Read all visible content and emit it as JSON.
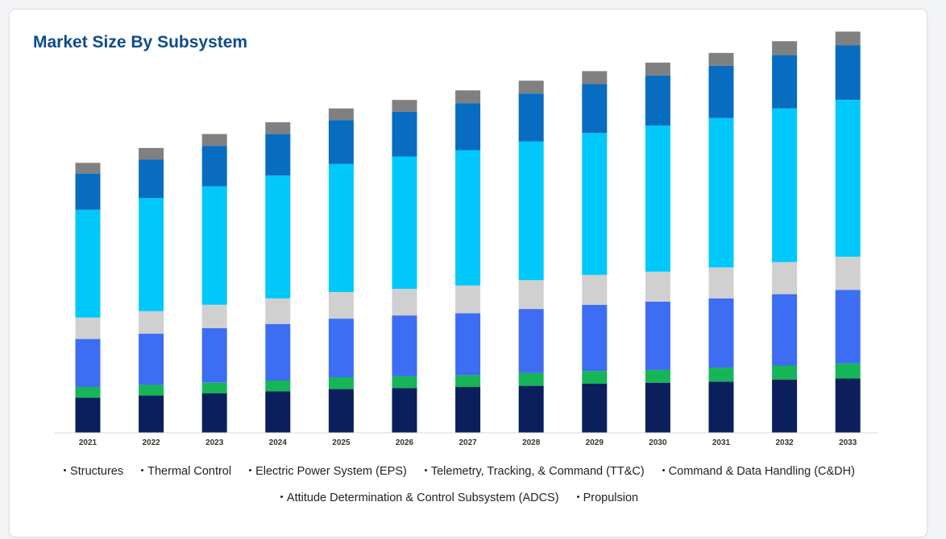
{
  "title": "Market Size By Subsystem",
  "legend": [
    {
      "label": "Structures"
    },
    {
      "label": "Thermal Control"
    },
    {
      "label": "Electric Power System (EPS)"
    },
    {
      "label": "Telemetry, Tracking, & Command (TT&C)"
    },
    {
      "label": "Command & Data Handling (C&DH)"
    },
    {
      "label": "Attitude Determination & Control Subsystem (ADCS)"
    },
    {
      "label": "Propulsion"
    }
  ],
  "chart_data": {
    "type": "bar",
    "stacked": true,
    "title": "Market Size By Subsystem",
    "xlabel": "",
    "ylabel": "",
    "grid": false,
    "legend_position": "bottom",
    "categories": [
      "2021",
      "2022",
      "2023",
      "2024",
      "2025",
      "2026",
      "2027",
      "2028",
      "2029",
      "2030",
      "2031",
      "2032",
      "2033"
    ],
    "ylim": [
      0,
      380
    ],
    "series": [
      {
        "color": "#0a1f5c",
        "values": [
          33,
          35,
          37,
          39,
          41,
          42,
          43,
          44,
          46,
          47,
          48,
          50,
          51
        ]
      },
      {
        "color": "#16b557",
        "values": [
          10,
          10,
          10,
          10,
          11,
          11,
          11,
          12,
          12,
          12,
          13,
          13,
          14
        ]
      },
      {
        "color": "#3d6df2",
        "values": [
          45,
          48,
          51,
          53,
          55,
          57,
          58,
          60,
          62,
          64,
          65,
          67,
          69
        ]
      },
      {
        "color": "#d0d0d0",
        "values": [
          20,
          21,
          22,
          24,
          25,
          25,
          26,
          27,
          28,
          28,
          29,
          30,
          31
        ]
      },
      {
        "color": "#00c8fb",
        "values": [
          101,
          106,
          111,
          115,
          120,
          124,
          127,
          130,
          133,
          137,
          140,
          144,
          147
        ]
      },
      {
        "color": "#086cc0",
        "values": [
          34,
          36,
          38,
          39,
          41,
          42,
          44,
          45,
          46,
          47,
          49,
          50,
          51
        ]
      },
      {
        "color": "#808080",
        "values": [
          10,
          11,
          11,
          11,
          11,
          11,
          12,
          12,
          12,
          12,
          12,
          13,
          13
        ]
      }
    ]
  }
}
